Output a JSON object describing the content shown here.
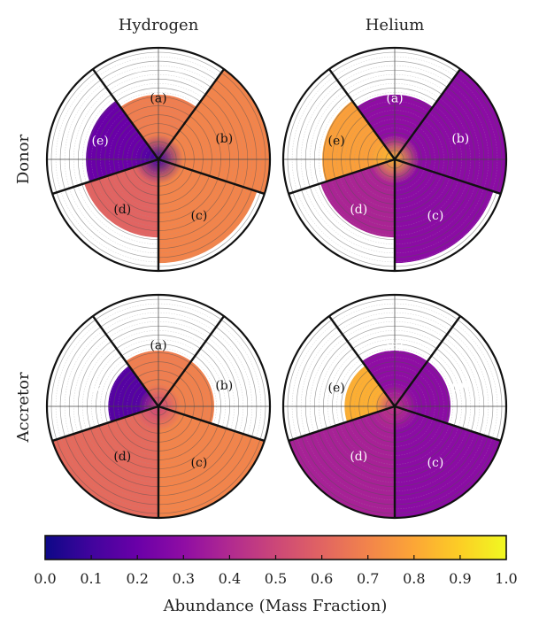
{
  "chart_data": {
    "type": "polar-wedge",
    "columns": [
      "Hydrogen",
      "Helium"
    ],
    "rows": [
      "Donor",
      "Accretor"
    ],
    "colormap": "plasma",
    "colorbar": {
      "label": "Abundance (Mass Fraction)",
      "range": [
        0.0,
        1.0
      ],
      "ticks": [
        "0.0",
        "0.1",
        "0.2",
        "0.3",
        "0.4",
        "0.5",
        "0.6",
        "0.7",
        "0.8",
        "0.9",
        "1.0"
      ]
    },
    "panels": [
      {
        "row": "Donor",
        "column": "Hydrogen",
        "wedges": [
          {
            "label": "(a)",
            "extent": 0.58,
            "abundance": 0.68,
            "core_abundance": 0.1
          },
          {
            "label": "(b)",
            "extent": 1.0,
            "abundance": 0.7,
            "core_abundance": 0.1
          },
          {
            "label": "(c)",
            "extent": 0.93,
            "abundance": 0.7,
            "core_abundance": 0.1
          },
          {
            "label": "(d)",
            "extent": 0.7,
            "abundance": 0.6,
            "core_abundance": 0.1
          },
          {
            "label": "(e)",
            "extent": 0.65,
            "abundance": 0.2,
            "core_abundance": 0.1
          }
        ]
      },
      {
        "row": "Donor",
        "column": "Helium",
        "wedges": [
          {
            "label": "(a)",
            "extent": 0.58,
            "abundance": 0.3,
            "core_abundance": 0.85
          },
          {
            "label": "(b)",
            "extent": 1.0,
            "abundance": 0.29,
            "core_abundance": 0.85
          },
          {
            "label": "(c)",
            "extent": 0.93,
            "abundance": 0.29,
            "core_abundance": 0.85
          },
          {
            "label": "(d)",
            "extent": 0.7,
            "abundance": 0.38,
            "core_abundance": 0.85
          },
          {
            "label": "(e)",
            "extent": 0.65,
            "abundance": 0.78,
            "core_abundance": 0.85
          }
        ]
      },
      {
        "row": "Accretor",
        "column": "Hydrogen",
        "wedges": [
          {
            "label": "(a)",
            "extent": 0.5,
            "abundance": 0.68,
            "core_abundance": 0.5
          },
          {
            "label": "(b)",
            "extent": 0.5,
            "abundance": 0.69,
            "core_abundance": 0.5
          },
          {
            "label": "(c)",
            "extent": 1.0,
            "abundance": 0.7,
            "core_abundance": 0.5
          },
          {
            "label": "(d)",
            "extent": 1.0,
            "abundance": 0.62,
            "core_abundance": 0.5
          },
          {
            "label": "(e)",
            "extent": 0.45,
            "abundance": 0.15,
            "core_abundance": 0.5
          }
        ]
      },
      {
        "row": "Accretor",
        "column": "Helium",
        "wedges": [
          {
            "label": "(a)",
            "extent": 0.5,
            "abundance": 0.3,
            "core_abundance": 0.45
          },
          {
            "label": "(b)",
            "extent": 0.5,
            "abundance": 0.29,
            "core_abundance": 0.45
          },
          {
            "label": "(c)",
            "extent": 1.0,
            "abundance": 0.29,
            "core_abundance": 0.45
          },
          {
            "label": "(d)",
            "extent": 1.0,
            "abundance": 0.37,
            "core_abundance": 0.45
          },
          {
            "label": "(e)",
            "extent": 0.45,
            "abundance": 0.82,
            "core_abundance": 0.45
          }
        ]
      }
    ]
  }
}
